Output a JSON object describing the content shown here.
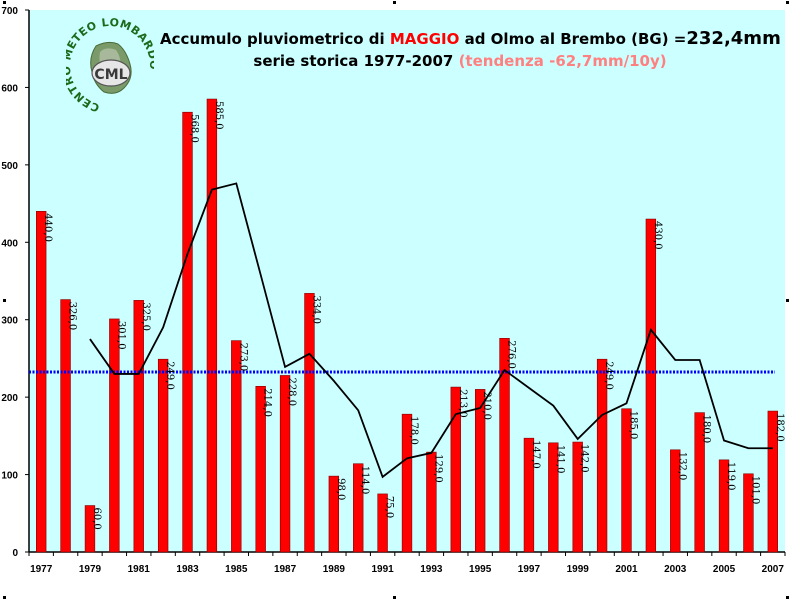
{
  "header": {
    "line1_prefix": "Accumulo pluviometrico di ",
    "line1_month": "MAGGIO",
    "line1_mid": " ad Olmo al Brembo (BG) =",
    "line1_value": "232,4mm",
    "line2_main": "serie storica 1977-2007 ",
    "line2_trend": "(tendenza -62,7mm/10y)"
  },
  "logo": {
    "ring_text": "CENTRO METEO LOMBARDO",
    "center_text": "CML"
  },
  "colors": {
    "plot_bg": "#ccffff",
    "bar": "#ff0000",
    "bar_border": "#800000",
    "mean_line": "#0000ff",
    "trend_line": "#000000",
    "month_accent": "#ff0000",
    "trend_text": "#ff8080"
  },
  "chart_data": {
    "type": "bar",
    "categories": [
      "1977",
      "1978",
      "1979",
      "1980",
      "1981",
      "1982",
      "1983",
      "1984",
      "1985",
      "1986",
      "1987",
      "1988",
      "1989",
      "1990",
      "1991",
      "1992",
      "1993",
      "1994",
      "1995",
      "1996",
      "1997",
      "1998",
      "1999",
      "2000",
      "2001",
      "2002",
      "2003",
      "2004",
      "2005",
      "2006",
      "2007"
    ],
    "x_tick_labels": [
      "1977",
      "1979",
      "1981",
      "1983",
      "1985",
      "1987",
      "1989",
      "1991",
      "1993",
      "1995",
      "1997",
      "1999",
      "2001",
      "2003",
      "2005",
      "2007"
    ],
    "values": [
      440,
      326,
      60,
      301,
      325,
      249,
      568,
      585,
      273,
      214,
      228,
      334,
      98,
      114,
      75,
      178,
      129,
      213,
      210,
      276,
      147,
      141,
      142,
      249,
      185,
      430,
      132,
      180,
      119,
      101,
      182
    ],
    "data_labels": [
      "440,0",
      "326,0",
      "60,0",
      "301,0",
      "325,0",
      "249,0",
      "568,0",
      "585,0",
      "273,0",
      "214,0",
      "228,0",
      "334,0",
      "98,0",
      "114,0",
      "75,0",
      "178,0",
      "129,0",
      "213,0",
      "210,0",
      "276,0",
      "147,0",
      "141,0",
      "142,0",
      "249,0",
      "185,0",
      "430,0",
      "132,0",
      "180,0",
      "119,0",
      "101,0",
      "182,0"
    ],
    "mean": 232.4,
    "trend_line": [
      null,
      null,
      275,
      230,
      230,
      290,
      385,
      468,
      476,
      358,
      239,
      256,
      221,
      183,
      97,
      121,
      128,
      178,
      186,
      235,
      212,
      189,
      146,
      177,
      192,
      287,
      248,
      248,
      144,
      134,
      134
    ],
    "ylim": [
      0,
      700
    ],
    "y_ticks": [
      0,
      100,
      200,
      300,
      400,
      500,
      600,
      700
    ],
    "grid": false
  }
}
